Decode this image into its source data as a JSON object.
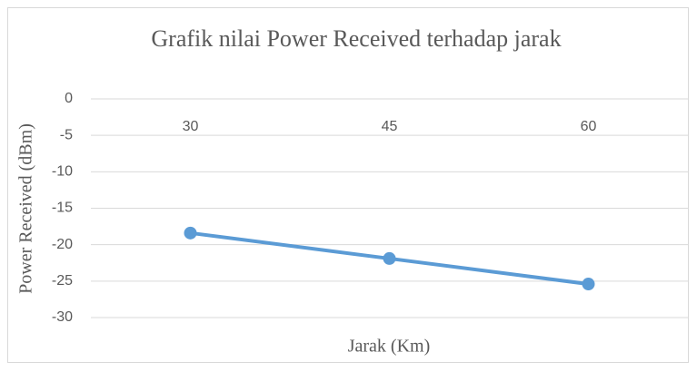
{
  "chart_data": {
    "type": "line",
    "title": "Grafik nilai Power Received terhadap jarak",
    "x_label": "Jarak (Km)",
    "y_label": "Power Received (dBm)",
    "categories": [
      "30",
      "45",
      "60"
    ],
    "series": [
      {
        "name": "Power Received",
        "color": "#5b9bd5",
        "values": [
          -18.4,
          -21.9,
          -25.4
        ]
      }
    ],
    "ylim": [
      -30,
      0
    ],
    "yticks": [
      0,
      -5,
      -10,
      -15,
      -20,
      -25,
      -30
    ],
    "grid": true
  }
}
